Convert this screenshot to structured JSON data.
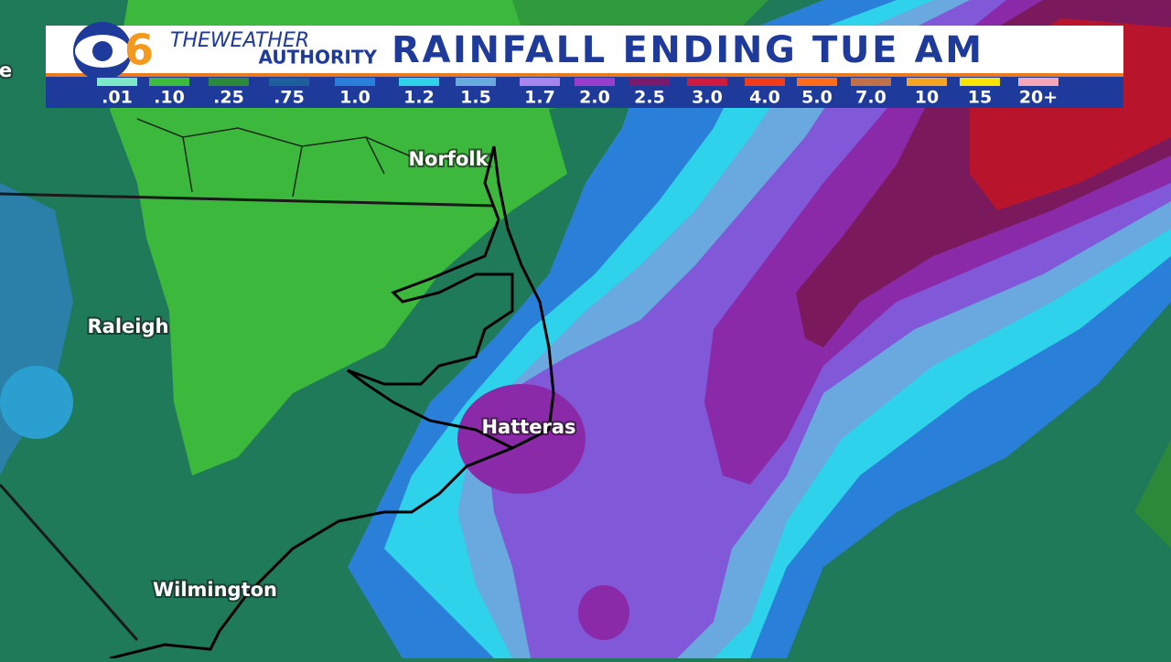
{
  "header": {
    "brand_top": "THEWEATHER",
    "brand_bottom": "AUTHORITY",
    "channel": "6",
    "title": "RAINFALL ENDING TUE AM"
  },
  "legend": [
    {
      "label": ".01",
      "color": "#7de8c4"
    },
    {
      "label": ".10",
      "color": "#3cbc3c"
    },
    {
      "label": ".25",
      "color": "#2a8a3a"
    },
    {
      "label": ".75",
      "color": "#1f5e9e"
    },
    {
      "label": "1.0",
      "color": "#2a80d8"
    },
    {
      "label": "1.2",
      "color": "#2ed2ea"
    },
    {
      "label": "1.5",
      "color": "#6aa8e0"
    },
    {
      "label": "1.7",
      "color": "#a884ee"
    },
    {
      "label": "2.0",
      "color": "#9a3ccc"
    },
    {
      "label": "2.5",
      "color": "#7a1a6c"
    },
    {
      "label": "3.0",
      "color": "#cc1a40"
    },
    {
      "label": "4.0",
      "color": "#f03c1c"
    },
    {
      "label": "5.0",
      "color": "#ff6c1c"
    },
    {
      "label": "7.0",
      "color": "#c0704a"
    },
    {
      "label": "10",
      "color": "#f6a424"
    },
    {
      "label": "15",
      "color": "#f6e400"
    },
    {
      "label": "20+",
      "color": "#f6a6b6"
    }
  ],
  "cities": [
    "e",
    "Norfolk",
    "Raleigh",
    "Hatteras",
    "Wilmington"
  ]
}
